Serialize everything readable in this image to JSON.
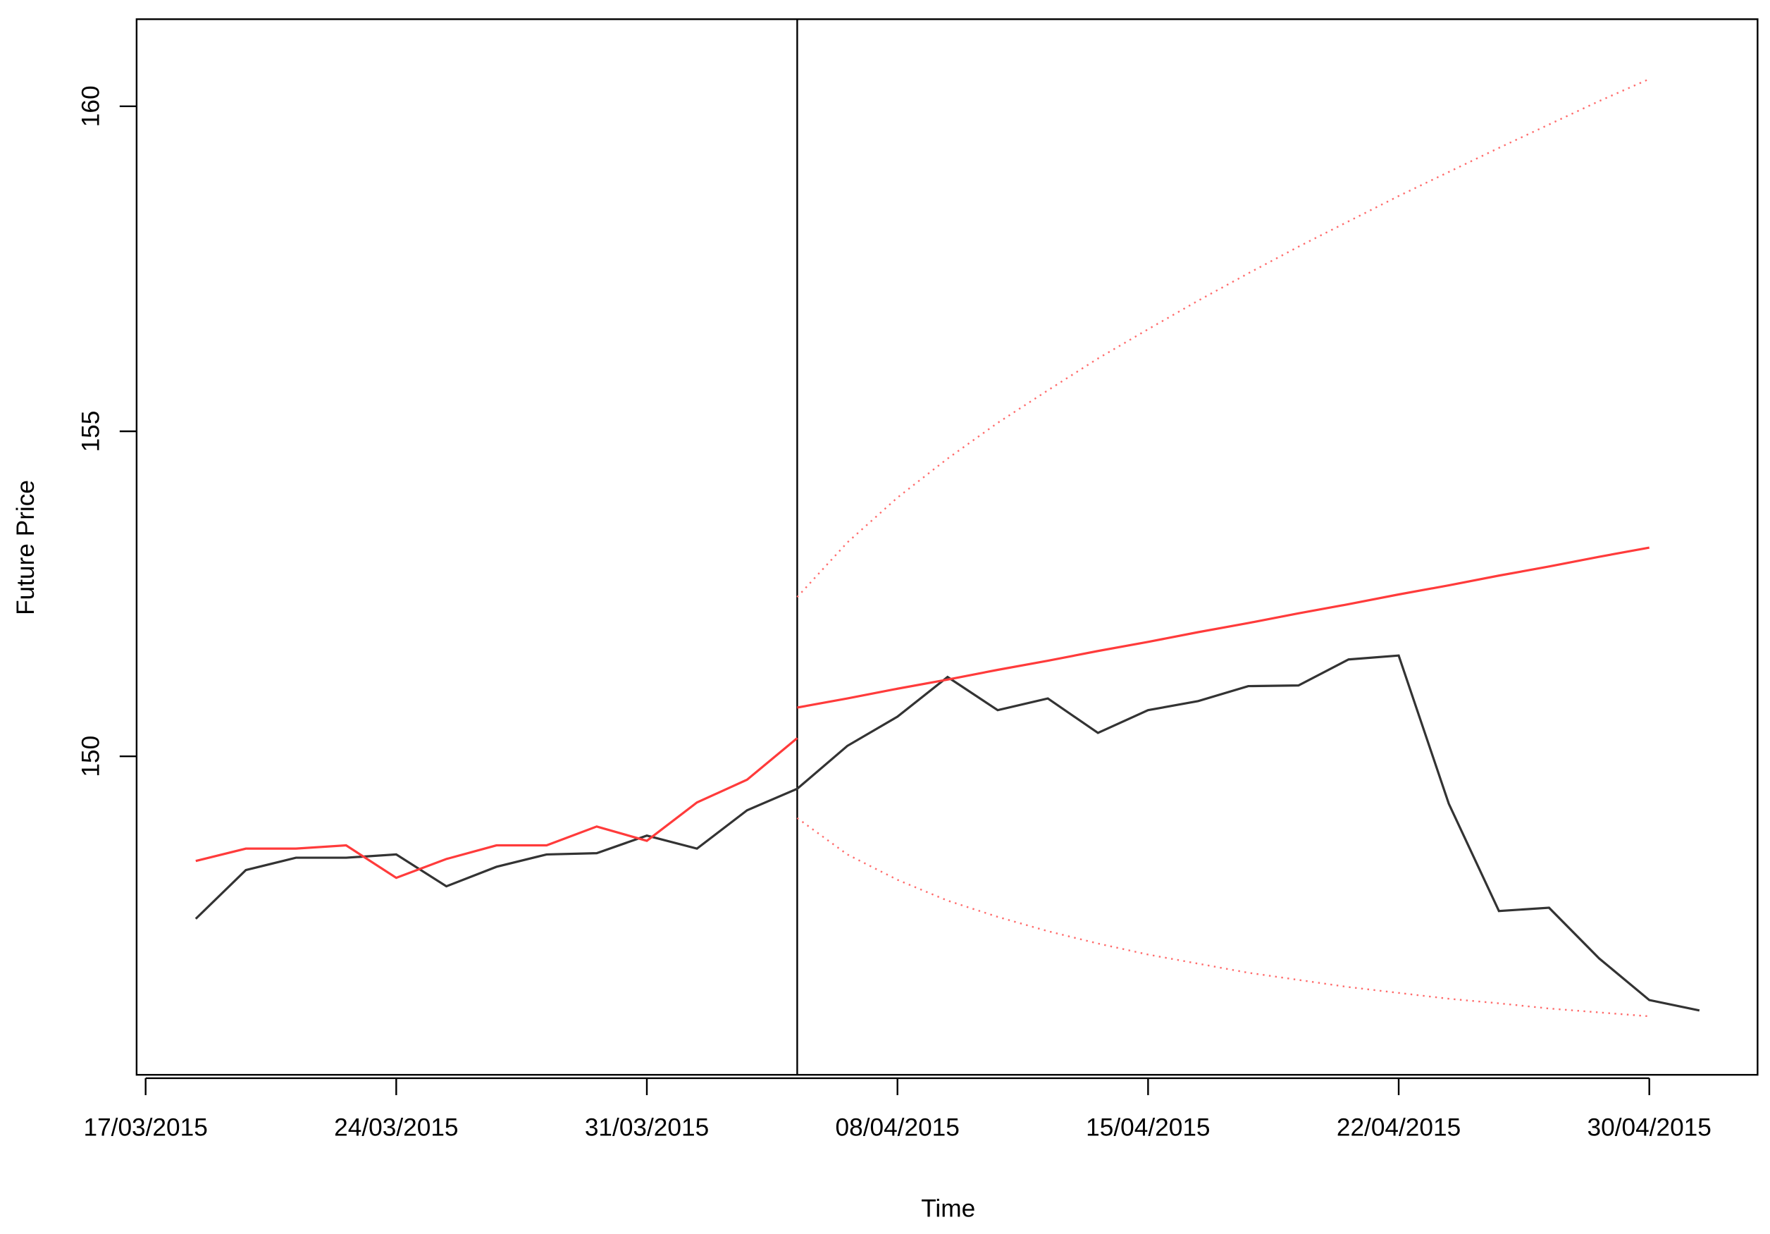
{
  "chart_data": {
    "type": "line",
    "x_label": "Time",
    "y_label": "Future Price",
    "xlim": [
      -0.18,
      32.16
    ],
    "ylim": [
      145.1,
      161.34
    ],
    "xticks": [
      {
        "value": 0,
        "label": "17/03/2015"
      },
      {
        "value": 5,
        "label": "24/03/2015"
      },
      {
        "value": 10,
        "label": "31/03/2015"
      },
      {
        "value": 15,
        "label": "08/04/2015"
      },
      {
        "value": 20,
        "label": "15/04/2015"
      },
      {
        "value": 25,
        "label": "22/04/2015"
      },
      {
        "value": 30,
        "label": "30/04/2015"
      }
    ],
    "yticks": [
      150,
      155,
      160
    ],
    "vline": 13,
    "series": [
      {
        "color": "#333333",
        "style": "solid",
        "x": [
          1,
          2,
          3,
          4,
          5,
          6,
          7,
          8,
          9,
          10,
          11,
          12,
          13,
          14,
          15,
          16,
          17,
          18,
          19,
          20,
          21,
          22,
          23,
          24,
          25,
          26,
          27,
          28,
          29,
          30,
          31
        ],
        "values": [
          147.5,
          148.25,
          148.44,
          148.44,
          148.49,
          148.0,
          148.3,
          148.49,
          148.51,
          148.78,
          148.58,
          149.17,
          149.5,
          150.16,
          150.61,
          151.22,
          150.71,
          150.89,
          150.36,
          150.71,
          150.85,
          151.08,
          151.09,
          151.49,
          151.55,
          149.27,
          147.62,
          147.67,
          146.89,
          146.25,
          146.09
        ]
      },
      {
        "color": "#ff3b3b",
        "style": "solid",
        "x": [
          1,
          2,
          3,
          4,
          5,
          6,
          7,
          8,
          9,
          10,
          11,
          12,
          13
        ],
        "values": [
          148.39,
          148.58,
          148.58,
          148.63,
          148.13,
          148.42,
          148.63,
          148.63,
          148.92,
          148.7,
          149.29,
          149.64,
          150.28
        ]
      },
      {
        "color": "#ff3b3b",
        "style": "solid",
        "x": [
          13,
          14,
          15,
          16,
          17,
          18,
          19,
          20,
          21,
          22,
          23,
          24,
          25,
          26,
          27,
          28,
          29,
          30
        ],
        "values": [
          150.75,
          150.89,
          151.04,
          151.18,
          151.33,
          151.47,
          151.62,
          151.76,
          151.91,
          152.05,
          152.2,
          152.34,
          152.49,
          152.63,
          152.78,
          152.92,
          153.07,
          153.21
        ]
      },
      {
        "color": "#ff6b6b",
        "style": "dotted",
        "x": [
          13,
          14,
          15,
          16,
          17,
          18,
          19,
          20,
          21,
          22,
          23,
          24,
          25,
          26,
          27,
          28,
          29,
          30
        ],
        "values": [
          152.45,
          153.29,
          153.98,
          154.58,
          155.13,
          155.63,
          156.12,
          156.57,
          157.01,
          157.43,
          157.84,
          158.23,
          158.62,
          158.99,
          159.36,
          159.72,
          160.08,
          160.42
        ]
      },
      {
        "color": "#ff6b6b",
        "style": "dotted",
        "x": [
          13,
          14,
          15,
          16,
          17,
          18,
          19,
          20,
          21,
          22,
          23,
          24,
          25,
          26,
          27,
          28,
          29,
          30
        ],
        "values": [
          149.05,
          148.49,
          148.1,
          147.78,
          147.53,
          147.31,
          147.12,
          146.95,
          146.81,
          146.67,
          146.56,
          146.45,
          146.36,
          146.27,
          146.2,
          146.12,
          146.06,
          146.0
        ]
      }
    ]
  }
}
